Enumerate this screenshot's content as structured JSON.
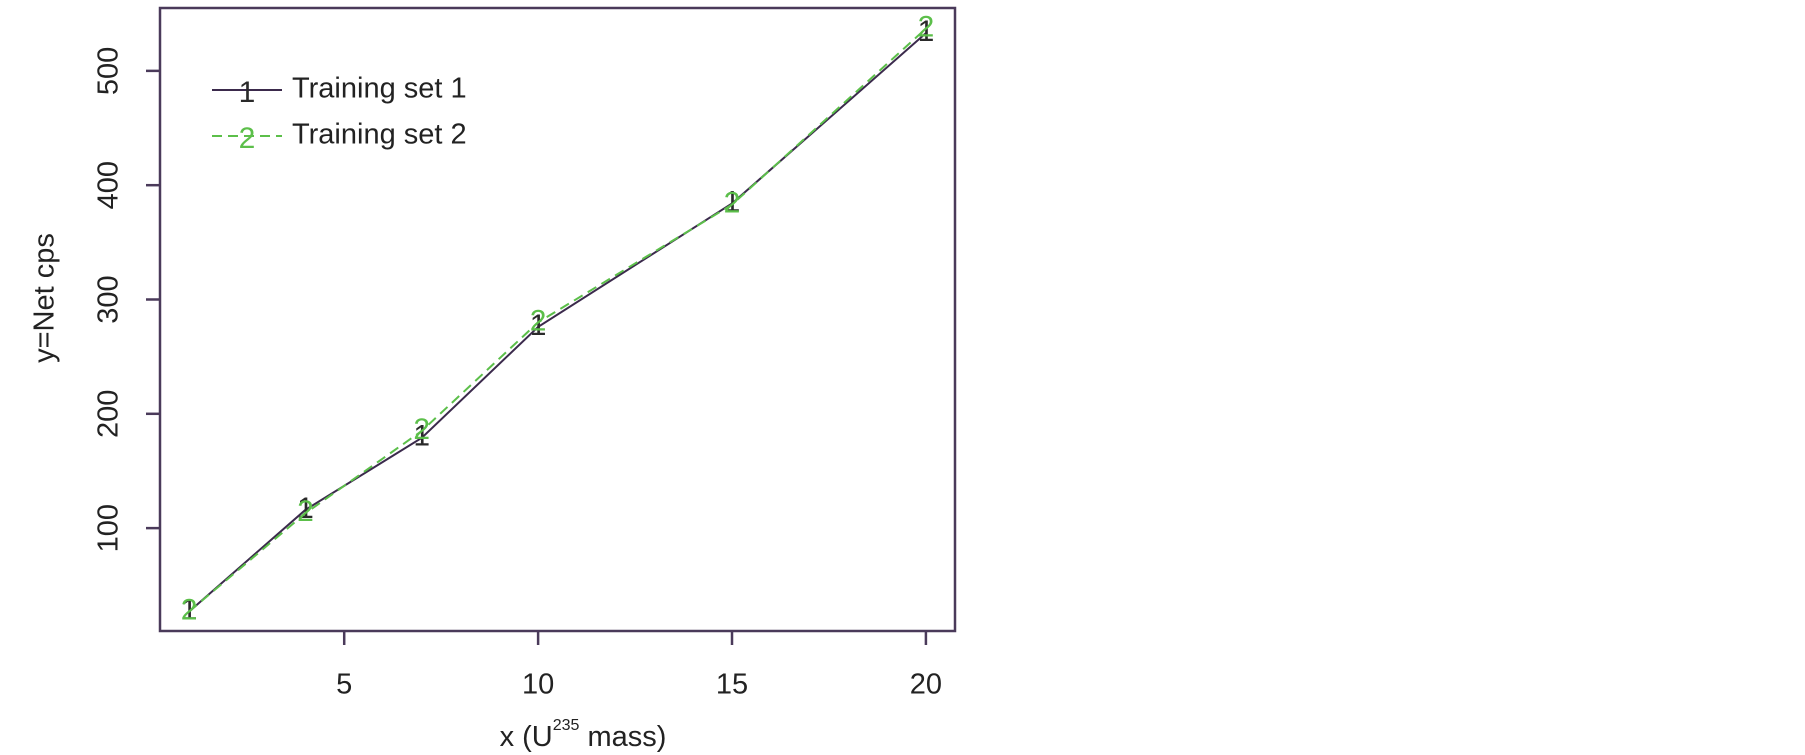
{
  "chart_data": {
    "type": "line",
    "xlabel": {
      "before": "x (U",
      "sup": "235",
      "after": " mass)"
    },
    "ylabel": "y=Net cps",
    "x": [
      1,
      4,
      7,
      10,
      15,
      20
    ],
    "series": [
      {
        "name": "Training set 1",
        "marker": "1",
        "color": "#3b2a4c",
        "marker_color": "#2a2a2a",
        "dash": false,
        "values": [
          27,
          116,
          179,
          276,
          384,
          533
        ]
      },
      {
        "name": "Training set 2",
        "marker": "2",
        "color": "#5cbf4a",
        "marker_color": "#5cbf4a",
        "dash": true,
        "values": [
          27,
          113,
          185,
          280,
          383,
          537
        ]
      }
    ],
    "xlim": [
      0.25,
      20.75
    ],
    "ylim": [
      10,
      555
    ],
    "xticks": [
      5,
      10,
      15,
      20
    ],
    "yticks": [
      100,
      200,
      300,
      400,
      500
    ],
    "legend": "top-left"
  }
}
